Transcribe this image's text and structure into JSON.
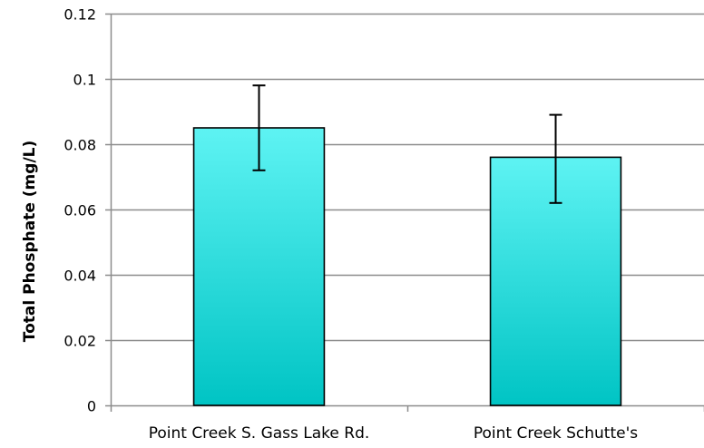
{
  "chart_data": {
    "type": "bar",
    "title": "",
    "xlabel": "",
    "ylabel": "Total Phosphate (mg/L)",
    "categories": [
      "Point Creek S. Gass Lake Rd.",
      "Point Creek Schutte's"
    ],
    "values": [
      0.085,
      0.076
    ],
    "error_low": [
      0.072,
      0.062
    ],
    "error_high": [
      0.098,
      0.089
    ],
    "ylim": [
      0,
      0.12
    ],
    "yticks": [
      0,
      0.02,
      0.04,
      0.06,
      0.08,
      0.1,
      0.12
    ],
    "ytick_labels": [
      "0",
      "0.02",
      "0.04",
      "0.06",
      "0.08",
      "0.1",
      "0.12"
    ],
    "grid": true,
    "legend": "none",
    "colors": {
      "bar_top": "#5ef3f3",
      "bar_bottom": "#00c4c4",
      "bar_stroke": "#000000",
      "grid": "#8c8c8c"
    }
  }
}
